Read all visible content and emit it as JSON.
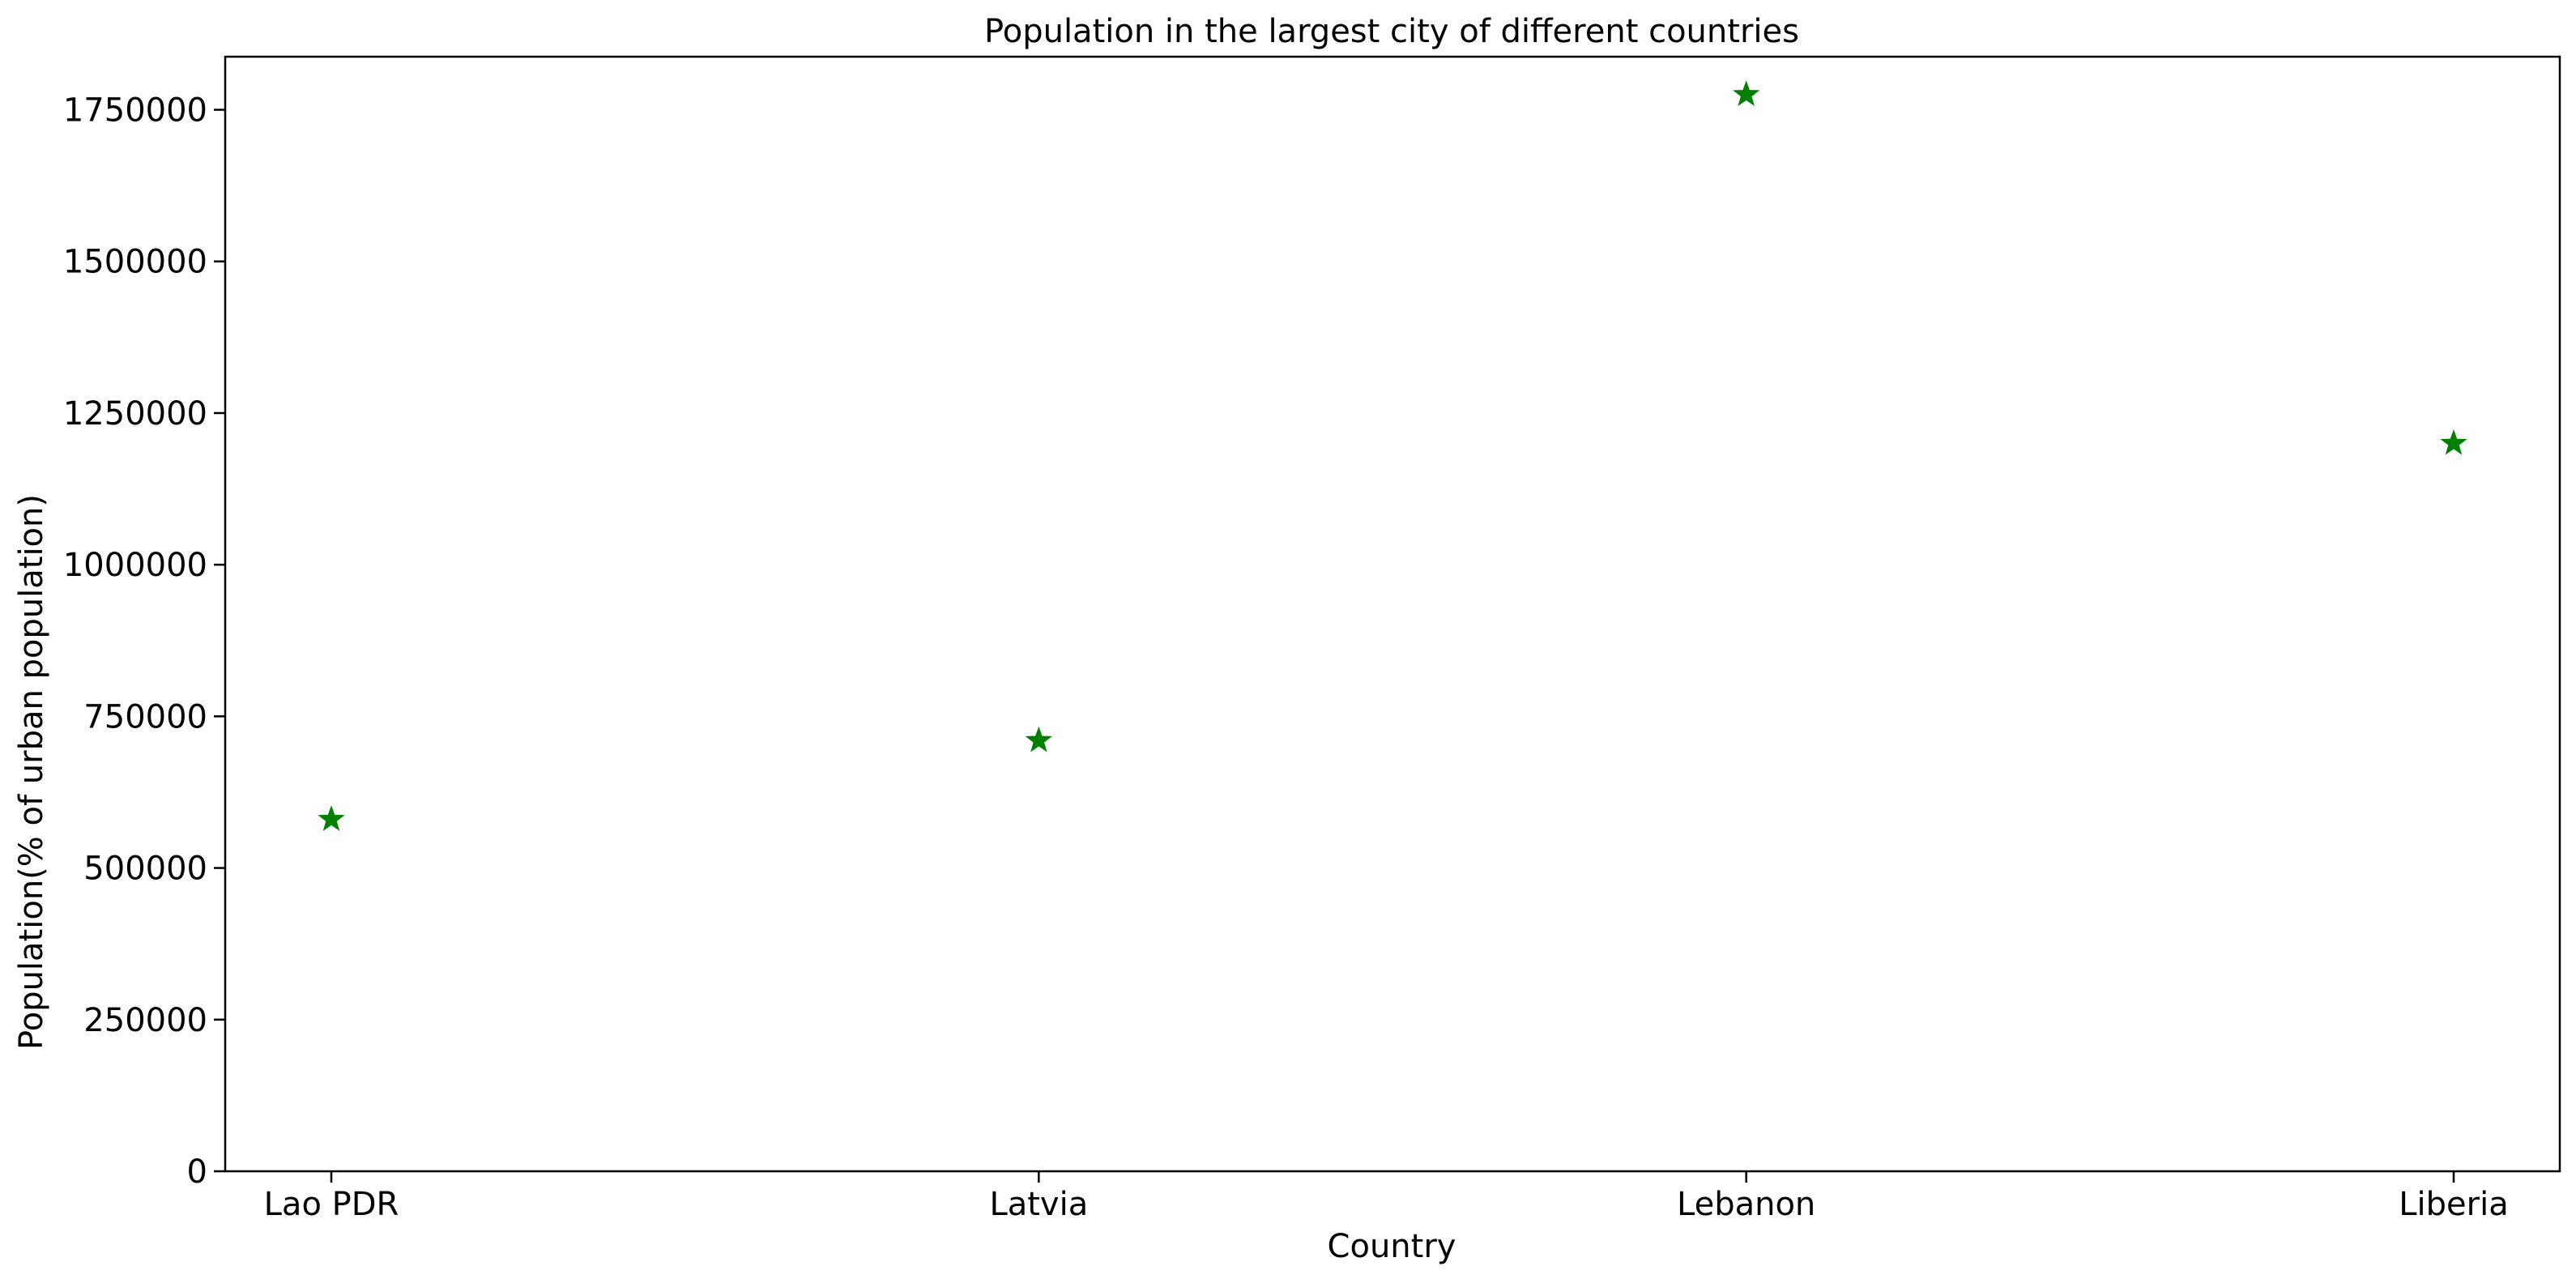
{
  "chart_data": {
    "type": "scatter",
    "title": "Population in the largest city of different countries",
    "xlabel": "Country",
    "ylabel": "Population(% of urban population)",
    "categories": [
      "Lao PDR",
      "Latvia",
      "Lebanon",
      "Liberia"
    ],
    "values": [
      580000,
      710000,
      1775000,
      1200000
    ],
    "ylim": [
      0,
      1837500
    ],
    "yticks": [
      0,
      250000,
      500000,
      750000,
      1000000,
      1250000,
      1500000,
      1750000
    ],
    "marker": "star",
    "marker_color": "#008000",
    "grid": false,
    "legend": false
  }
}
